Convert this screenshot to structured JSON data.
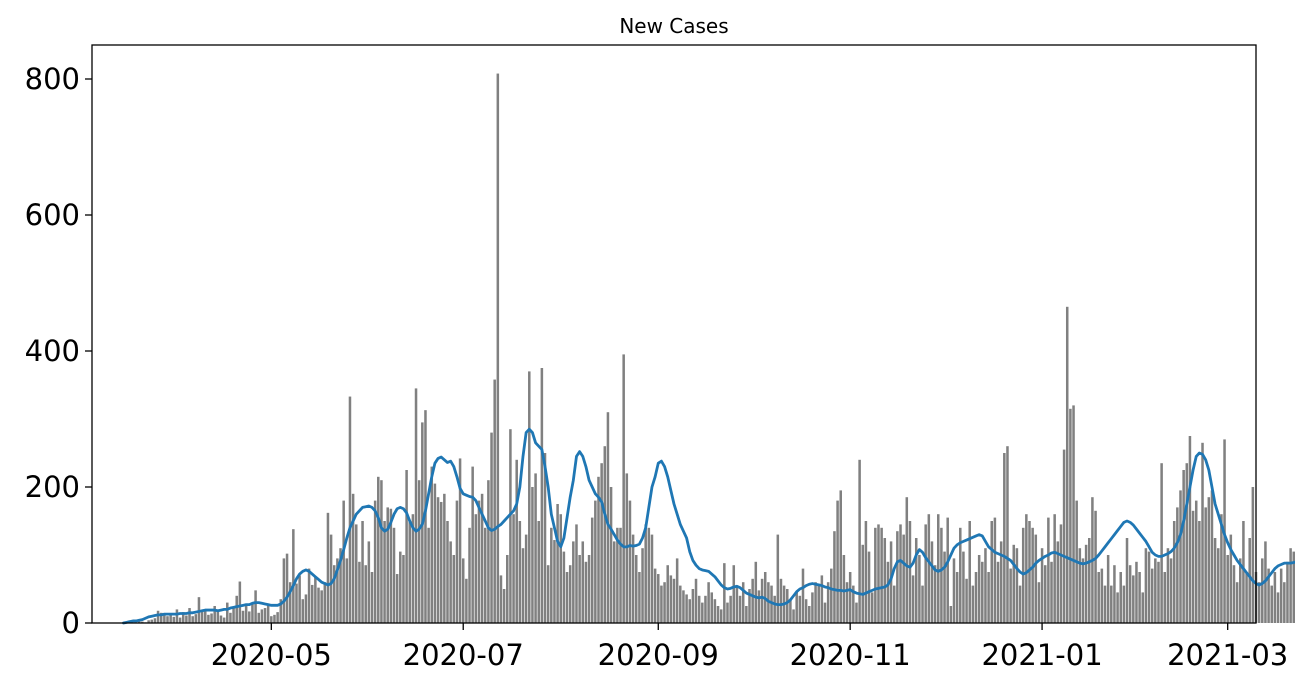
{
  "chart_data": {
    "type": "bar",
    "title": "New Cases",
    "xlabel": "",
    "ylabel": "",
    "x_start": "2020-03-05",
    "x_end": "2021-03-10",
    "data_start": "2020-03-15",
    "ylim": [
      0,
      850
    ],
    "y_ticks": [
      0,
      200,
      400,
      600,
      800
    ],
    "x_ticks": [
      "2020-05",
      "2020-07",
      "2020-09",
      "2020-11",
      "2021-01",
      "2021-03"
    ],
    "legend": "none",
    "grid": false,
    "colors": {
      "bars": "#808080",
      "line": "#1f77b4"
    },
    "series": [
      {
        "name": "",
        "type": "bar",
        "values": [
          0,
          0,
          2,
          0,
          1,
          3,
          2,
          1,
          4,
          5,
          7,
          18,
          15,
          12,
          10,
          14,
          9,
          20,
          8,
          16,
          11,
          22,
          10,
          13,
          38,
          17,
          20,
          12,
          14,
          25,
          18,
          11,
          8,
          30,
          15,
          22,
          40,
          61,
          18,
          25,
          17,
          30,
          48,
          15,
          20,
          22,
          28,
          10,
          12,
          16,
          35,
          95,
          102,
          60,
          138,
          58,
          70,
          35,
          42,
          80,
          56,
          68,
          52,
          48,
          60,
          162,
          130,
          85,
          95,
          110,
          180,
          95,
          333,
          190,
          145,
          90,
          150,
          85,
          120,
          75,
          180,
          215,
          210,
          150,
          170,
          168,
          140,
          72,
          105,
          100,
          225,
          150,
          160,
          345,
          210,
          295,
          313,
          140,
          230,
          205,
          185,
          178,
          190,
          150,
          120,
          100,
          180,
          242,
          95,
          65,
          140,
          230,
          160,
          180,
          190,
          140,
          210,
          280,
          358,
          808,
          70,
          50,
          100,
          285,
          160,
          240,
          150,
          110,
          130,
          370,
          200,
          220,
          150,
          375,
          250,
          85,
          140,
          122,
          175,
          160,
          105,
          75,
          85,
          120,
          145,
          100,
          120,
          90,
          100,
          155,
          180,
          215,
          235,
          260,
          310,
          200,
          120,
          140,
          140,
          395,
          220,
          180,
          130,
          100,
          75,
          110,
          145,
          140,
          130,
          80,
          72,
          55,
          60,
          85,
          70,
          65,
          95,
          55,
          48,
          42,
          35,
          50,
          65,
          40,
          30,
          40,
          60,
          45,
          35,
          25,
          20,
          88,
          30,
          40,
          85,
          55,
          40,
          60,
          25,
          50,
          65,
          90,
          48,
          65,
          75,
          60,
          55,
          40,
          130,
          65,
          55,
          50,
          35,
          20,
          45,
          40,
          80,
          35,
          25,
          45,
          60,
          55,
          70,
          30,
          60,
          80,
          135,
          180,
          195,
          100,
          60,
          75,
          55,
          30,
          240,
          115,
          150,
          105,
          45,
          140,
          145,
          140,
          125,
          90,
          120,
          55,
          135,
          145,
          130,
          185,
          150,
          70,
          125,
          100,
          55,
          145,
          160,
          120,
          85,
          160,
          140,
          105,
          155,
          25,
          95,
          75,
          140,
          105,
          65,
          150,
          55,
          75,
          100,
          90,
          110,
          75,
          150,
          155,
          90,
          120,
          250,
          260,
          80,
          115,
          110,
          55,
          140,
          160,
          150,
          140,
          130,
          60,
          110,
          85,
          155,
          90,
          160,
          120,
          145,
          255,
          465,
          315,
          320,
          180,
          110,
          95,
          115,
          125,
          185,
          165,
          75,
          80,
          55,
          100,
          55,
          85,
          45,
          75,
          55,
          125,
          85,
          70,
          90,
          75,
          45,
          110,
          105,
          80,
          95,
          90,
          235,
          75,
          110,
          95,
          150,
          170,
          195,
          225,
          235,
          275,
          165,
          180,
          150,
          265,
          170,
          185,
          195,
          125,
          110,
          160,
          270,
          100,
          130,
          85,
          60,
          95,
          150,
          75,
          125,
          200,
          75,
          60,
          95,
          120,
          80,
          55,
          75,
          45,
          80,
          60,
          90,
          110,
          105,
          55,
          45,
          25,
          20,
          60,
          130,
          205,
          75,
          70,
          65,
          50,
          30,
          45,
          55,
          80,
          30,
          60,
          65
        ]
      },
      {
        "name": "",
        "type": "line",
        "values": [
          0,
          1,
          2,
          3,
          3,
          4,
          5,
          7,
          9,
          10,
          11,
          12,
          12,
          13,
          13,
          13,
          13,
          13,
          14,
          14,
          14,
          15,
          15,
          16,
          17,
          18,
          19,
          19,
          19,
          19,
          18,
          19,
          20,
          20,
          22,
          23,
          24,
          25,
          26,
          27,
          27,
          29,
          30,
          30,
          29,
          28,
          27,
          26,
          26,
          26,
          28,
          32,
          38,
          46,
          55,
          65,
          72,
          76,
          78,
          76,
          72,
          68,
          64,
          60,
          58,
          56,
          58,
          65,
          78,
          92,
          108,
          125,
          140,
          150,
          160,
          165,
          170,
          171,
          172,
          170,
          165,
          155,
          140,
          135,
          138,
          148,
          160,
          168,
          170,
          168,
          162,
          150,
          140,
          135,
          138,
          145,
          165,
          190,
          215,
          235,
          242,
          244,
          240,
          236,
          238,
          230,
          215,
          198,
          190,
          188,
          186,
          185,
          180,
          170,
          160,
          150,
          140,
          136,
          138,
          142,
          145,
          150,
          155,
          160,
          165,
          175,
          200,
          245,
          280,
          285,
          280,
          265,
          260,
          255,
          230,
          200,
          160,
          140,
          120,
          112,
          125,
          155,
          185,
          210,
          245,
          252,
          245,
          230,
          210,
          200,
          190,
          185,
          178,
          160,
          145,
          138,
          130,
          122,
          116,
          112,
          112,
          114,
          113,
          114,
          116,
          125,
          140,
          170,
          200,
          215,
          235,
          238,
          230,
          215,
          195,
          175,
          160,
          145,
          135,
          125,
          105,
          92,
          85,
          80,
          78,
          77,
          76,
          72,
          68,
          62,
          56,
          52,
          50,
          51,
          53,
          54,
          52,
          48,
          44,
          42,
          40,
          38,
          37,
          38,
          36,
          32,
          30,
          28,
          27,
          27,
          28,
          30,
          34,
          40,
          46,
          50,
          52,
          55,
          57,
          58,
          57,
          56,
          55,
          53,
          52,
          50,
          49,
          48,
          48,
          47,
          48,
          49,
          46,
          44,
          43,
          42,
          44,
          46,
          48,
          50,
          51,
          52,
          53,
          56,
          65,
          80,
          90,
          92,
          88,
          84,
          82,
          88,
          100,
          108,
          104,
          96,
          90,
          84,
          78,
          76,
          78,
          82,
          90,
          100,
          110,
          115,
          118,
          120,
          122,
          124,
          126,
          128,
          130,
          128,
          120,
          112,
          108,
          104,
          102,
          100,
          98,
          95,
          92,
          86,
          80,
          75,
          72,
          74,
          78,
          82,
          88,
          92,
          95,
          98,
          100,
          103,
          104,
          102,
          100,
          98,
          96,
          94,
          92,
          90,
          88,
          87,
          88,
          90,
          92,
          95,
          100,
          106,
          112,
          118,
          124,
          130,
          136,
          142,
          148,
          150,
          148,
          144,
          138,
          132,
          126,
          120,
          112,
          104,
          100,
          98,
          98,
          100,
          102,
          105,
          110,
          118,
          130,
          150,
          175,
          200,
          225,
          245,
          250,
          248,
          240,
          225,
          200,
          175,
          160,
          145,
          130,
          118,
          108,
          100,
          92,
          86,
          80,
          74,
          68,
          62,
          58,
          56,
          58,
          62,
          68,
          74,
          80,
          84,
          86,
          88,
          88,
          88,
          89,
          90,
          92,
          96,
          100,
          106,
          112,
          118,
          124,
          130,
          138,
          146,
          156,
          168,
          180,
          190,
          198,
          204,
          206,
          208,
          210,
          212,
          204,
          196,
          180,
          165,
          158,
          160,
          162,
          158,
          152,
          144,
          138,
          132,
          125,
          120,
          115,
          110,
          105,
          100,
          96,
          92,
          90,
          90,
          88,
          88,
          90,
          96,
          100,
          102,
          103,
          104,
          104,
          103,
          102,
          96,
          85,
          75,
          70,
          68,
          70,
          74,
          80,
          84,
          86,
          86,
          86,
          87,
          88,
          90,
          88,
          84,
          80,
          72,
          64,
          56,
          52,
          50,
          50
        ]
      }
    ]
  }
}
